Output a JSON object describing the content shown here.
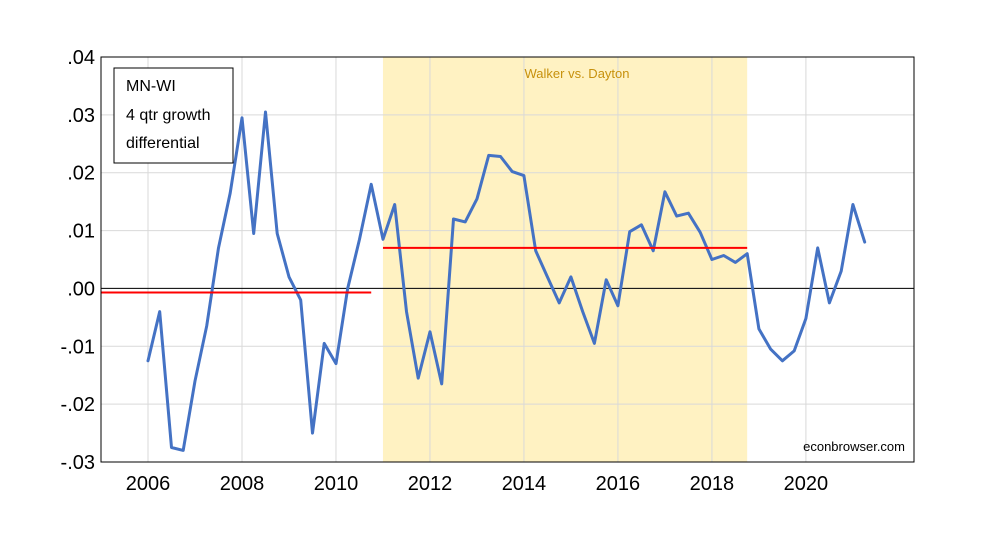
{
  "chart_data": {
    "type": "line",
    "legend": [
      "MN-WI",
      "4 qtr growth",
      "differential"
    ],
    "legend_position": "top-left",
    "shaded_label": "Walker vs. Dayton",
    "credit": "econbrowser.com",
    "xlim": [
      2005,
      2022.3
    ],
    "ylim": [
      -0.03,
      0.04
    ],
    "grid": true,
    "x_ticks": [
      2006,
      2008,
      2010,
      2012,
      2014,
      2016,
      2018,
      2020
    ],
    "x_tick_labels": [
      "2006",
      "2008",
      "2010",
      "2012",
      "2014",
      "2016",
      "2018",
      "2020"
    ],
    "y_ticks": [
      0.04,
      0.03,
      0.02,
      0.01,
      0.0,
      -0.01,
      -0.02,
      -0.03
    ],
    "y_tick_labels": [
      ".04",
      ".03",
      ".02",
      ".01",
      ".00",
      "-.01",
      "-.02",
      "-.03"
    ],
    "shaded_period": [
      2011.0,
      2018.75
    ],
    "zero_line": 0,
    "colors": {
      "series": "#4472C4",
      "mean": "#FF0000",
      "shade": "#FFF2C2",
      "shade_text": "#C7910D",
      "grid": "#D9D9D9",
      "zeroline": "#000000"
    },
    "series": [
      {
        "x": [
          2006.0,
          2006.25,
          2006.5,
          2006.75,
          2007.0,
          2007.25,
          2007.5,
          2007.75,
          2008.0,
          2008.25,
          2008.5,
          2008.75,
          2009.0,
          2009.25,
          2009.5,
          2009.75,
          2010.0,
          2010.25,
          2010.5,
          2010.75,
          2011.0,
          2011.25,
          2011.5,
          2011.75,
          2012.0,
          2012.25,
          2012.5,
          2012.75,
          2013.0,
          2013.25,
          2013.5,
          2013.75,
          2014.0,
          2014.25,
          2014.5,
          2014.75,
          2015.0,
          2015.25,
          2015.5,
          2015.75,
          2016.0,
          2016.25,
          2016.5,
          2016.75,
          2017.0,
          2017.25,
          2017.5,
          2017.75,
          2018.0,
          2018.25,
          2018.5,
          2018.75,
          2019.0,
          2019.25,
          2019.5,
          2019.75,
          2020.0,
          2020.25,
          2020.5,
          2020.75,
          2021.0,
          2021.25
        ],
        "values": [
          -0.0125,
          -0.004,
          -0.0275,
          -0.028,
          -0.016,
          -0.0065,
          0.007,
          0.0165,
          0.0295,
          0.0095,
          0.0305,
          0.0095,
          0.002,
          -0.002,
          -0.025,
          -0.0095,
          -0.013,
          0.0,
          0.0085,
          0.018,
          0.0085,
          0.0145,
          -0.004,
          -0.0155,
          -0.0075,
          -0.0165,
          0.012,
          0.0115,
          0.0155,
          0.023,
          0.0228,
          0.0202,
          0.0195,
          0.0065,
          0.002,
          -0.0025,
          0.002,
          -0.004,
          -0.0095,
          0.0015,
          -0.003,
          0.0098,
          0.011,
          0.0065,
          0.0167,
          0.0125,
          0.013,
          0.0097,
          0.005,
          0.0057,
          0.0045,
          0.006,
          -0.007,
          -0.0105,
          -0.0125,
          -0.0108,
          -0.0052,
          0.007,
          -0.0025,
          0.003,
          0.0145,
          0.008
        ]
      },
      {
        "x": [
          2005.0,
          2010.75
        ],
        "values": [
          -0.0007,
          -0.0007
        ]
      },
      {
        "x": [
          2011.0,
          2018.75
        ],
        "values": [
          0.007,
          0.007
        ]
      }
    ]
  }
}
